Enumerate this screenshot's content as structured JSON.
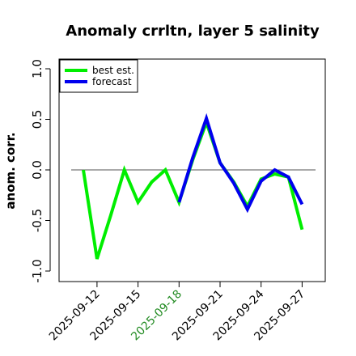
{
  "chart_data": {
    "type": "line",
    "title": "Anomaly crrltn, layer 5 salinity",
    "xlabel": "",
    "ylabel": "anom. corr.",
    "ylim": [
      -1.0,
      1.0
    ],
    "yticks": [
      -1.0,
      -0.5,
      0.0,
      0.5,
      1.0
    ],
    "ytick_labels": [
      "-1.0",
      "-0.5",
      "0.0",
      "0.5",
      "1.0"
    ],
    "x": [
      "2025-09-11",
      "2025-09-12",
      "2025-09-13",
      "2025-09-14",
      "2025-09-15",
      "2025-09-16",
      "2025-09-17",
      "2025-09-18",
      "2025-09-19",
      "2025-09-20",
      "2025-09-21",
      "2025-09-22",
      "2025-09-23",
      "2025-09-24",
      "2025-09-25",
      "2025-09-26",
      "2025-09-27"
    ],
    "xticks": [
      "2025-09-12",
      "2025-09-15",
      "2025-09-18",
      "2025-09-21",
      "2025-09-24",
      "2025-09-27"
    ],
    "xtick_colors": [
      "#000000",
      "#000000",
      "#228b22",
      "#000000",
      "#000000",
      "#000000"
    ],
    "reference_line": 0.0,
    "grid": false,
    "legend_position": "top-left",
    "series": [
      {
        "name": "best est.",
        "color": "#00ee00",
        "values": [
          0.0,
          -0.88,
          -0.45,
          0.0,
          -0.32,
          -0.12,
          0.0,
          -0.32,
          0.1,
          0.47,
          0.07,
          -0.12,
          -0.36,
          -0.09,
          -0.04,
          -0.07,
          -0.59
        ]
      },
      {
        "name": "forecast",
        "color": "#0000ee",
        "values": [
          null,
          null,
          null,
          null,
          null,
          null,
          null,
          -0.32,
          0.12,
          0.51,
          0.07,
          -0.13,
          -0.39,
          -0.11,
          0.0,
          -0.07,
          -0.34
        ]
      }
    ]
  }
}
